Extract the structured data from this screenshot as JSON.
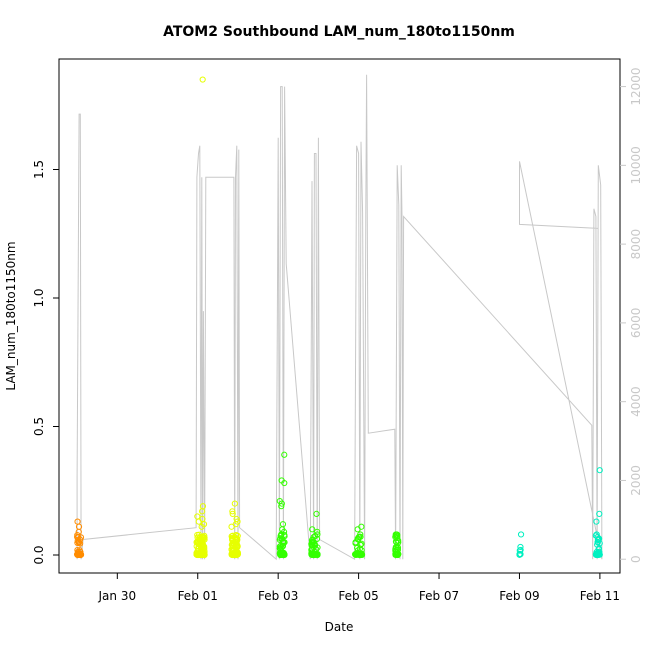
{
  "chart_data": {
    "type": "scatter",
    "title": "ATOM2 Southbound LAM_num_180to1150nm",
    "xlabel": "Date",
    "ylabel": "LAM_num_180to1150nm",
    "x_ticks": [
      "Jan 30",
      "Feb 01",
      "Feb 03",
      "Feb 05",
      "Feb 07",
      "Feb 09",
      "Feb 11"
    ],
    "x_tick_days": [
      0,
      2,
      4,
      6,
      8,
      10,
      12
    ],
    "xlim_days": [
      -1.45,
      12.5
    ],
    "y_ticks": [
      "0.0",
      "0.5",
      "1.0",
      "1.5"
    ],
    "y_tick_values": [
      0,
      0.5,
      1.0,
      1.5
    ],
    "ylim": [
      -0.07,
      1.93
    ],
    "y2_ticks": [
      "0",
      "2000",
      "4000",
      "6000",
      "8000",
      "10000",
      "12000"
    ],
    "y2_tick_values": [
      0,
      2000,
      4000,
      6000,
      8000,
      10000,
      12000
    ],
    "y2lim": [
      -350,
      12700
    ],
    "colors": {
      "orange": "#FF8C00",
      "yellow": "#E6FF00",
      "green": "#33FF00",
      "teal": "#00F0C0",
      "line": "#C8C8C8"
    },
    "scatter_series": [
      {
        "color": "orange",
        "center": -0.95,
        "spread": 0.05,
        "count": 45,
        "extras": [
          0.13,
          0.11,
          0.09,
          0.07,
          0.06,
          0.05
        ]
      },
      {
        "color": "yellow",
        "center": 2.07,
        "spread": 0.1,
        "count": 170,
        "extras": [
          1.85,
          0.19,
          0.17,
          0.15,
          0.14,
          0.13,
          0.12,
          0.11
        ]
      },
      {
        "color": "yellow",
        "center": 2.92,
        "spread": 0.08,
        "count": 120,
        "extras": [
          0.2,
          0.17,
          0.16,
          0.14,
          0.13,
          0.12,
          0.11
        ]
      },
      {
        "color": "green",
        "center": 4.1,
        "spread": 0.06,
        "count": 60,
        "extras": [
          0.39,
          0.29,
          0.28,
          0.21,
          0.2,
          0.19,
          0.12,
          0.1,
          0.09,
          0.08
        ]
      },
      {
        "color": "green",
        "center": 4.9,
        "spread": 0.08,
        "count": 60,
        "extras": [
          0.16,
          0.1,
          0.09,
          0.08,
          0.07,
          0.06,
          0.05
        ]
      },
      {
        "color": "green",
        "center": 6.0,
        "spread": 0.09,
        "count": 40,
        "extras": [
          0.11,
          0.1,
          0.08,
          0.06,
          0.04
        ]
      },
      {
        "color": "green",
        "center": 6.95,
        "spread": 0.04,
        "count": 30,
        "extras": [
          0.08,
          0.08,
          0.07,
          0.03,
          0.02
        ]
      },
      {
        "color": "teal",
        "center": 10.02,
        "spread": 0.02,
        "count": 8,
        "extras": [
          0.08
        ]
      },
      {
        "color": "teal",
        "center": 11.95,
        "spread": 0.05,
        "count": 40,
        "extras": [
          0.33,
          0.16,
          0.13,
          0.08,
          0.07,
          0.06,
          0.05
        ]
      }
    ],
    "line_series": {
      "axis": "right",
      "points": [
        [
          -1.0,
          0
        ],
        [
          -1.0,
          2100
        ],
        [
          -0.95,
          11300
        ],
        [
          -0.92,
          11300
        ],
        [
          -0.9,
          0
        ],
        [
          -0.85,
          500
        ],
        [
          1.96,
          800
        ],
        [
          1.98,
          9700
        ],
        [
          2.02,
          10300
        ],
        [
          2.05,
          10500
        ],
        [
          2.08,
          0
        ],
        [
          2.1,
          9700
        ],
        [
          2.12,
          0
        ],
        [
          2.14,
          6300
        ],
        [
          2.17,
          0
        ],
        [
          2.2,
          9700
        ],
        [
          2.9,
          9700
        ],
        [
          2.92,
          0
        ],
        [
          2.94,
          9700
        ],
        [
          2.97,
          10500
        ],
        [
          3.0,
          0
        ],
        [
          3.02,
          10400
        ],
        [
          3.04,
          800
        ],
        [
          3.95,
          0
        ],
        [
          4.0,
          10700
        ],
        [
          4.03,
          0
        ],
        [
          4.06,
          12000
        ],
        [
          4.1,
          12000
        ],
        [
          4.13,
          0
        ],
        [
          4.16,
          12000
        ],
        [
          4.2,
          7500
        ],
        [
          4.8,
          0
        ],
        [
          4.84,
          9600
        ],
        [
          4.88,
          0
        ],
        [
          4.9,
          10300
        ],
        [
          4.94,
          10300
        ],
        [
          4.97,
          0
        ],
        [
          5.0,
          10700
        ],
        [
          5.03,
          500
        ],
        [
          5.9,
          0
        ],
        [
          5.95,
          10500
        ],
        [
          6.0,
          10300
        ],
        [
          6.03,
          0
        ],
        [
          6.06,
          10600
        ],
        [
          6.1,
          8800
        ],
        [
          6.15,
          0
        ],
        [
          6.18,
          8800
        ],
        [
          6.2,
          12300
        ],
        [
          6.24,
          3200
        ],
        [
          6.9,
          3300
        ],
        [
          6.92,
          0
        ],
        [
          6.96,
          10000
        ],
        [
          7.0,
          9000
        ],
        [
          7.03,
          0
        ],
        [
          7.06,
          10000
        ],
        [
          7.08,
          8700
        ],
        [
          7.1,
          0
        ],
        [
          7.12,
          8700
        ],
        [
          11.8,
          3400
        ],
        [
          11.82,
          0
        ],
        [
          11.85,
          8900
        ],
        [
          11.9,
          8700
        ],
        [
          11.93,
          0
        ],
        [
          11.96,
          10000
        ],
        [
          12.02,
          9500
        ],
        [
          12.05,
          0
        ],
        [
          10.0,
          10100
        ],
        [
          10.0,
          8500
        ],
        [
          11.95,
          8400
        ]
      ]
    }
  }
}
